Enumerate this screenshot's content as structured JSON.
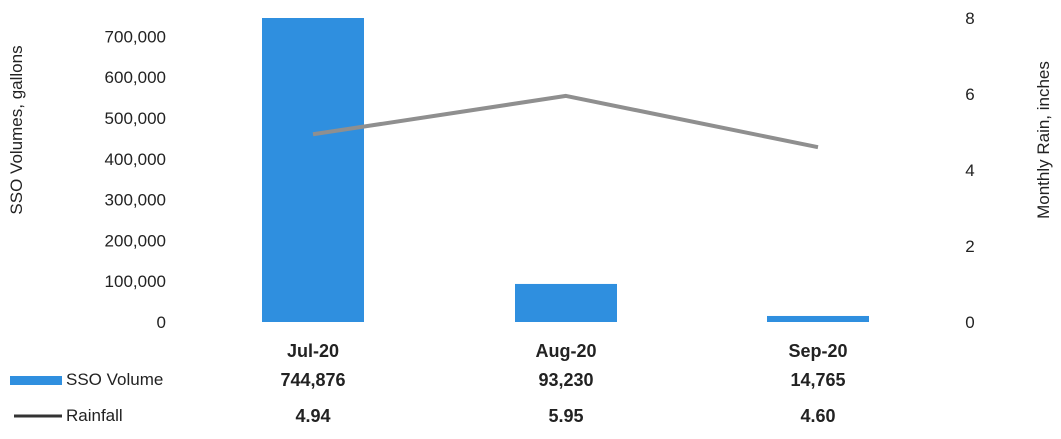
{
  "chart_data": {
    "type": "bar",
    "categories": [
      "Jul-20",
      "Aug-20",
      "Sep-20"
    ],
    "series": [
      {
        "name": "SSO Volume",
        "kind": "bar",
        "axis": "left",
        "values": [
          744876,
          93230,
          14765
        ],
        "value_labels": [
          "744,876",
          "93,230",
          "14,765"
        ],
        "color": "#2f8fdf"
      },
      {
        "name": "Rainfall",
        "kind": "line",
        "axis": "right",
        "values": [
          4.94,
          5.95,
          4.6
        ],
        "value_labels": [
          "4.94",
          "5.95",
          "4.60"
        ],
        "color": "#8f8f8f"
      }
    ],
    "ylabel": "SSO Volumes, gallons",
    "y2label": "Monthly Rain, inches",
    "ylim": [
      0,
      744876
    ],
    "y2lim": [
      0,
      8
    ],
    "y_ticks": [
      "0",
      "100,000",
      "200,000",
      "300,000",
      "400,000",
      "500,000",
      "600,000",
      "700,000"
    ],
    "y_tick_values": [
      0,
      100000,
      200000,
      300000,
      400000,
      500000,
      600000,
      700000
    ],
    "y2_ticks": [
      "0",
      "2",
      "4",
      "6",
      "8"
    ],
    "y2_tick_values": [
      0,
      2,
      4,
      6,
      8
    ],
    "grid": false,
    "legend": "data-table-bottom-left"
  }
}
